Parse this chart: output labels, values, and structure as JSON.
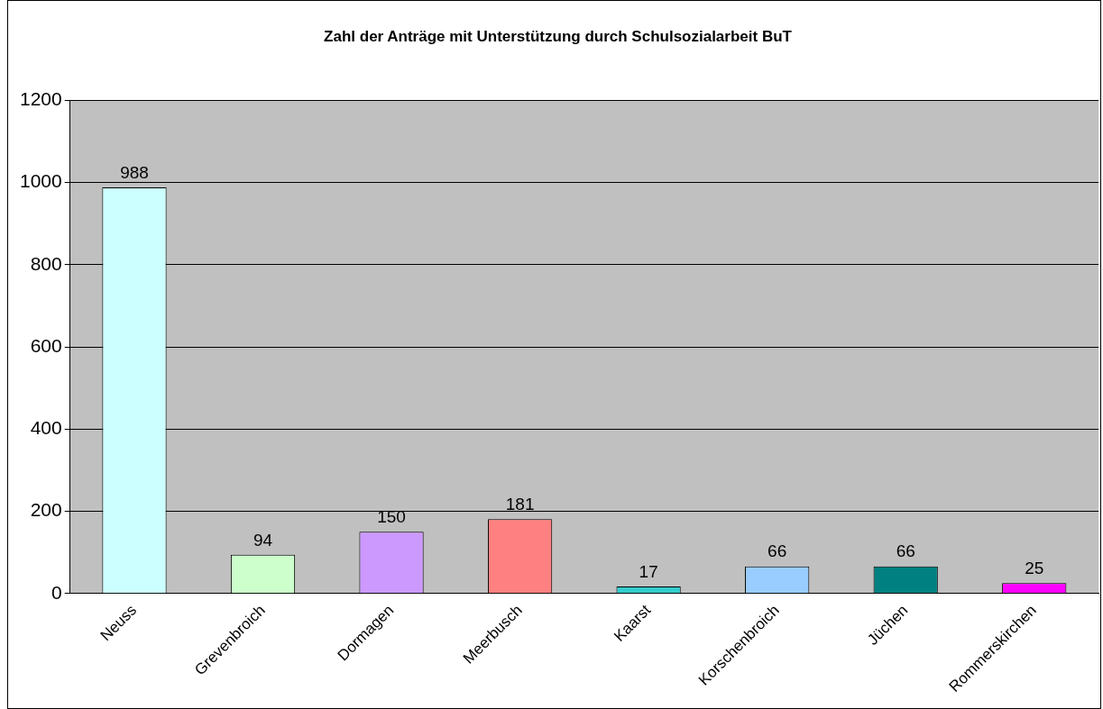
{
  "chart_data": {
    "type": "bar",
    "title": "Zahl der Anträge mit Unterstützung durch Schulsozialarbeit BuT",
    "categories": [
      "Neuss",
      "Grevenbroich",
      "Dormagen",
      "Meerbusch",
      "Kaarst",
      "Korschenbroich",
      "Jüchen",
      "Rommerskirchen"
    ],
    "values": [
      988,
      94,
      150,
      181,
      17,
      66,
      66,
      25
    ],
    "colors": [
      "#ccffff",
      "#ccffcc",
      "#cc99ff",
      "#ff8080",
      "#33cccc",
      "#99ccff",
      "#008080",
      "#ff00ff"
    ],
    "ylim": [
      0,
      1200
    ],
    "yticks": [
      0,
      200,
      400,
      600,
      800,
      1000,
      1200
    ],
    "grid": "y",
    "data_labels": true,
    "legend": false
  }
}
